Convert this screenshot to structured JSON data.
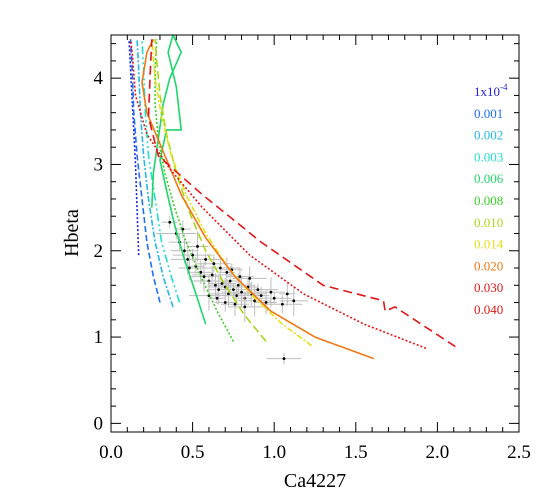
{
  "chart_data": {
    "type": "line",
    "title": "",
    "xlabel": "Ca4227",
    "ylabel": "Hbeta",
    "xlim": [
      0.0,
      2.5
    ],
    "ylim": [
      -0.1,
      4.5
    ],
    "grid": false,
    "legend_placement": "right",
    "x_ticks": [
      "0.0",
      "0.5",
      "1.0",
      "1.5",
      "2.0",
      "2.5"
    ],
    "y_ticks": [
      "0",
      "1",
      "2",
      "3",
      "4"
    ],
    "series": [
      {
        "name": "1x10",
        "name_exponent": "-4",
        "color": "#1f1fd6",
        "dash": "2,2",
        "points": [
          [
            0.17,
            1.95
          ],
          [
            0.15,
            3.0
          ],
          [
            0.12,
            4.1
          ],
          [
            0.11,
            4.45
          ]
        ]
      },
      {
        "name": "0.001",
        "color": "#1e6ff5",
        "dash": "6,3",
        "points": [
          [
            0.3,
            1.4
          ],
          [
            0.26,
            1.7
          ],
          [
            0.22,
            2.1
          ],
          [
            0.19,
            2.6
          ],
          [
            0.16,
            3.1
          ],
          [
            0.14,
            3.6
          ],
          [
            0.13,
            4.1
          ],
          [
            0.12,
            4.45
          ]
        ]
      },
      {
        "name": "0.002",
        "color": "#25b8e6",
        "dash": "6,2,2,2",
        "points": [
          [
            0.38,
            1.35
          ],
          [
            0.32,
            1.7
          ],
          [
            0.27,
            2.1
          ],
          [
            0.23,
            2.6
          ],
          [
            0.2,
            3.1
          ],
          [
            0.18,
            3.6
          ],
          [
            0.17,
            4.1
          ],
          [
            0.16,
            4.45
          ]
        ]
      },
      {
        "name": "0.003",
        "color": "#22e0d0",
        "dash": "8,3,2,3,2,3",
        "points": [
          [
            0.42,
            1.4
          ],
          [
            0.37,
            1.7
          ],
          [
            0.31,
            2.1
          ],
          [
            0.27,
            2.6
          ],
          [
            0.23,
            3.1
          ],
          [
            0.21,
            3.6
          ],
          [
            0.2,
            4.1
          ],
          [
            0.19,
            4.45
          ]
        ]
      },
      {
        "name": "0.006",
        "color": "#1fd66a",
        "dash": "",
        "points": [
          [
            0.58,
            1.15
          ],
          [
            0.52,
            1.5
          ],
          [
            0.45,
            1.9
          ],
          [
            0.39,
            2.3
          ],
          [
            0.34,
            2.7
          ],
          [
            0.3,
            3.05
          ],
          [
            0.34,
            3.4
          ],
          [
            0.43,
            3.4
          ],
          [
            0.4,
            3.9
          ],
          [
            0.35,
            4.3
          ],
          [
            0.38,
            4.5
          ],
          [
            0.43,
            4.3
          ],
          [
            0.36,
            4.0
          ],
          [
            0.32,
            3.7
          ],
          [
            0.29,
            3.3
          ],
          [
            0.26,
            2.9
          ],
          [
            0.25,
            2.5
          ]
        ]
      },
      {
        "name": "0.008",
        "color": "#3ccf28",
        "dash": "2,2",
        "points": [
          [
            0.75,
            0.95
          ],
          [
            0.65,
            1.3
          ],
          [
            0.55,
            1.7
          ],
          [
            0.46,
            2.1
          ],
          [
            0.39,
            2.5
          ],
          [
            0.33,
            2.9
          ],
          [
            0.29,
            3.3
          ],
          [
            0.27,
            3.7
          ],
          [
            0.27,
            4.1
          ],
          [
            0.28,
            4.45
          ]
        ]
      },
      {
        "name": "0.010",
        "color": "#a8d818",
        "dash": "8,4",
        "points": [
          [
            0.95,
            0.95
          ],
          [
            0.82,
            1.25
          ],
          [
            0.7,
            1.6
          ],
          [
            0.58,
            2.0
          ],
          [
            0.48,
            2.45
          ],
          [
            0.4,
            2.9
          ],
          [
            0.34,
            3.35
          ],
          [
            0.3,
            3.8
          ],
          [
            0.28,
            4.2
          ],
          [
            0.27,
            4.45
          ]
        ]
      },
      {
        "name": "0.014",
        "color": "#e6e018",
        "dash": "6,2,2,2",
        "points": [
          [
            1.23,
            0.9
          ],
          [
            1.05,
            1.15
          ],
          [
            0.88,
            1.45
          ],
          [
            0.72,
            1.8
          ],
          [
            0.58,
            2.2
          ],
          [
            0.46,
            2.65
          ],
          [
            0.37,
            3.1
          ],
          [
            0.31,
            3.55
          ],
          [
            0.27,
            4.0
          ],
          [
            0.25,
            4.45
          ]
        ]
      },
      {
        "name": "0.020",
        "color": "#f07814",
        "dash": "",
        "points": [
          [
            1.61,
            0.75
          ],
          [
            1.25,
            1.0
          ],
          [
            0.98,
            1.3
          ],
          [
            0.76,
            1.7
          ],
          [
            0.58,
            2.15
          ],
          [
            0.43,
            2.65
          ],
          [
            0.32,
            3.15
          ],
          [
            0.22,
            3.6
          ],
          [
            0.19,
            3.95
          ],
          [
            0.22,
            4.3
          ],
          [
            0.26,
            4.45
          ]
        ]
      },
      {
        "name": "0.030",
        "color": "#e01818",
        "dash": "2,2",
        "points": [
          [
            1.93,
            0.87
          ],
          [
            1.55,
            1.15
          ],
          [
            1.18,
            1.5
          ],
          [
            0.85,
            1.95
          ],
          [
            0.56,
            2.5
          ],
          [
            0.36,
            2.95
          ],
          [
            0.22,
            3.35
          ],
          [
            0.15,
            3.8
          ],
          [
            0.13,
            4.3
          ],
          [
            0.12,
            4.45
          ]
        ]
      },
      {
        "name": "0.040",
        "color": "#e01818",
        "dash": "9,5",
        "points": [
          [
            2.11,
            0.89
          ],
          [
            1.74,
            1.35
          ],
          [
            1.68,
            1.3
          ],
          [
            1.67,
            1.42
          ],
          [
            1.3,
            1.6
          ],
          [
            0.92,
            2.1
          ],
          [
            0.56,
            2.65
          ],
          [
            0.29,
            3.1
          ],
          [
            0.23,
            3.55
          ],
          [
            0.24,
            4.05
          ],
          [
            0.25,
            4.45
          ]
        ]
      }
    ],
    "observations": {
      "label": "",
      "points": [
        [
          0.36,
          2.33
        ],
        [
          0.42,
          2.1
        ],
        [
          0.45,
          2.0
        ],
        [
          0.47,
          1.9
        ],
        [
          0.5,
          1.95
        ],
        [
          0.52,
          1.82
        ],
        [
          0.55,
          1.75
        ],
        [
          0.57,
          1.7
        ],
        [
          0.6,
          1.65
        ],
        [
          0.62,
          1.72
        ],
        [
          0.64,
          1.6
        ],
        [
          0.66,
          1.55
        ],
        [
          0.68,
          1.62
        ],
        [
          0.7,
          1.58
        ],
        [
          0.72,
          1.5
        ],
        [
          0.73,
          1.65
        ],
        [
          0.75,
          1.55
        ],
        [
          0.77,
          1.48
        ],
        [
          0.78,
          1.6
        ],
        [
          0.8,
          1.52
        ],
        [
          0.82,
          1.45
        ],
        [
          0.84,
          1.58
        ],
        [
          0.86,
          1.5
        ],
        [
          0.88,
          1.42
        ],
        [
          0.9,
          1.55
        ],
        [
          0.92,
          1.48
        ],
        [
          0.95,
          1.4
        ],
        [
          0.98,
          1.52
        ],
        [
          1.0,
          1.45
        ],
        [
          1.05,
          1.38
        ],
        [
          1.08,
          1.5
        ],
        [
          0.53,
          2.05
        ],
        [
          0.58,
          1.9
        ],
        [
          0.63,
          1.85
        ],
        [
          0.67,
          1.8
        ],
        [
          0.71,
          1.75
        ],
        [
          0.74,
          1.78
        ],
        [
          0.79,
          1.7
        ],
        [
          0.85,
          1.68
        ],
        [
          0.6,
          1.48
        ],
        [
          0.65,
          1.45
        ],
        [
          0.7,
          1.4
        ],
        [
          0.76,
          1.38
        ],
        [
          0.82,
          1.35
        ],
        [
          0.4,
          2.2
        ],
        [
          0.44,
          2.25
        ],
        [
          0.48,
          1.8
        ],
        [
          1.12,
          1.42
        ],
        [
          1.06,
          0.75
        ]
      ]
    }
  }
}
